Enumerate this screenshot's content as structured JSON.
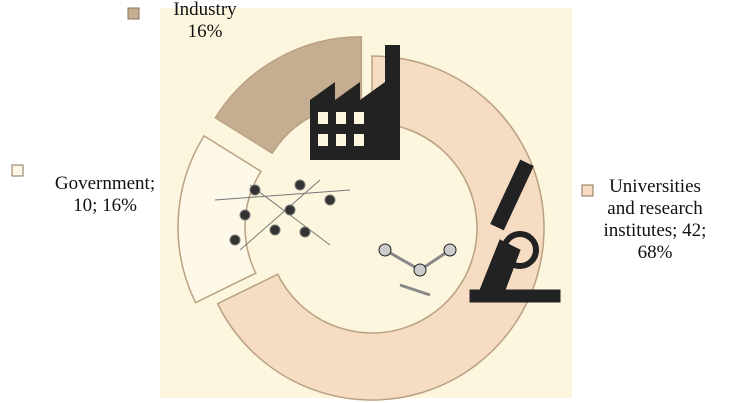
{
  "chart_data": {
    "type": "donut",
    "values": [
      42,
      10,
      10
    ],
    "labels": [
      [
        "Universities",
        "and research",
        "institutes;  42;",
        "68%"
      ],
      [
        "Government;",
        "10; 16%"
      ],
      [
        "Industry",
        "16%"
      ]
    ],
    "colors": [
      "#f5dcc3",
      "#fdf8e8",
      "#c4ad91"
    ],
    "exploded": [
      false,
      true,
      true
    ]
  }
}
